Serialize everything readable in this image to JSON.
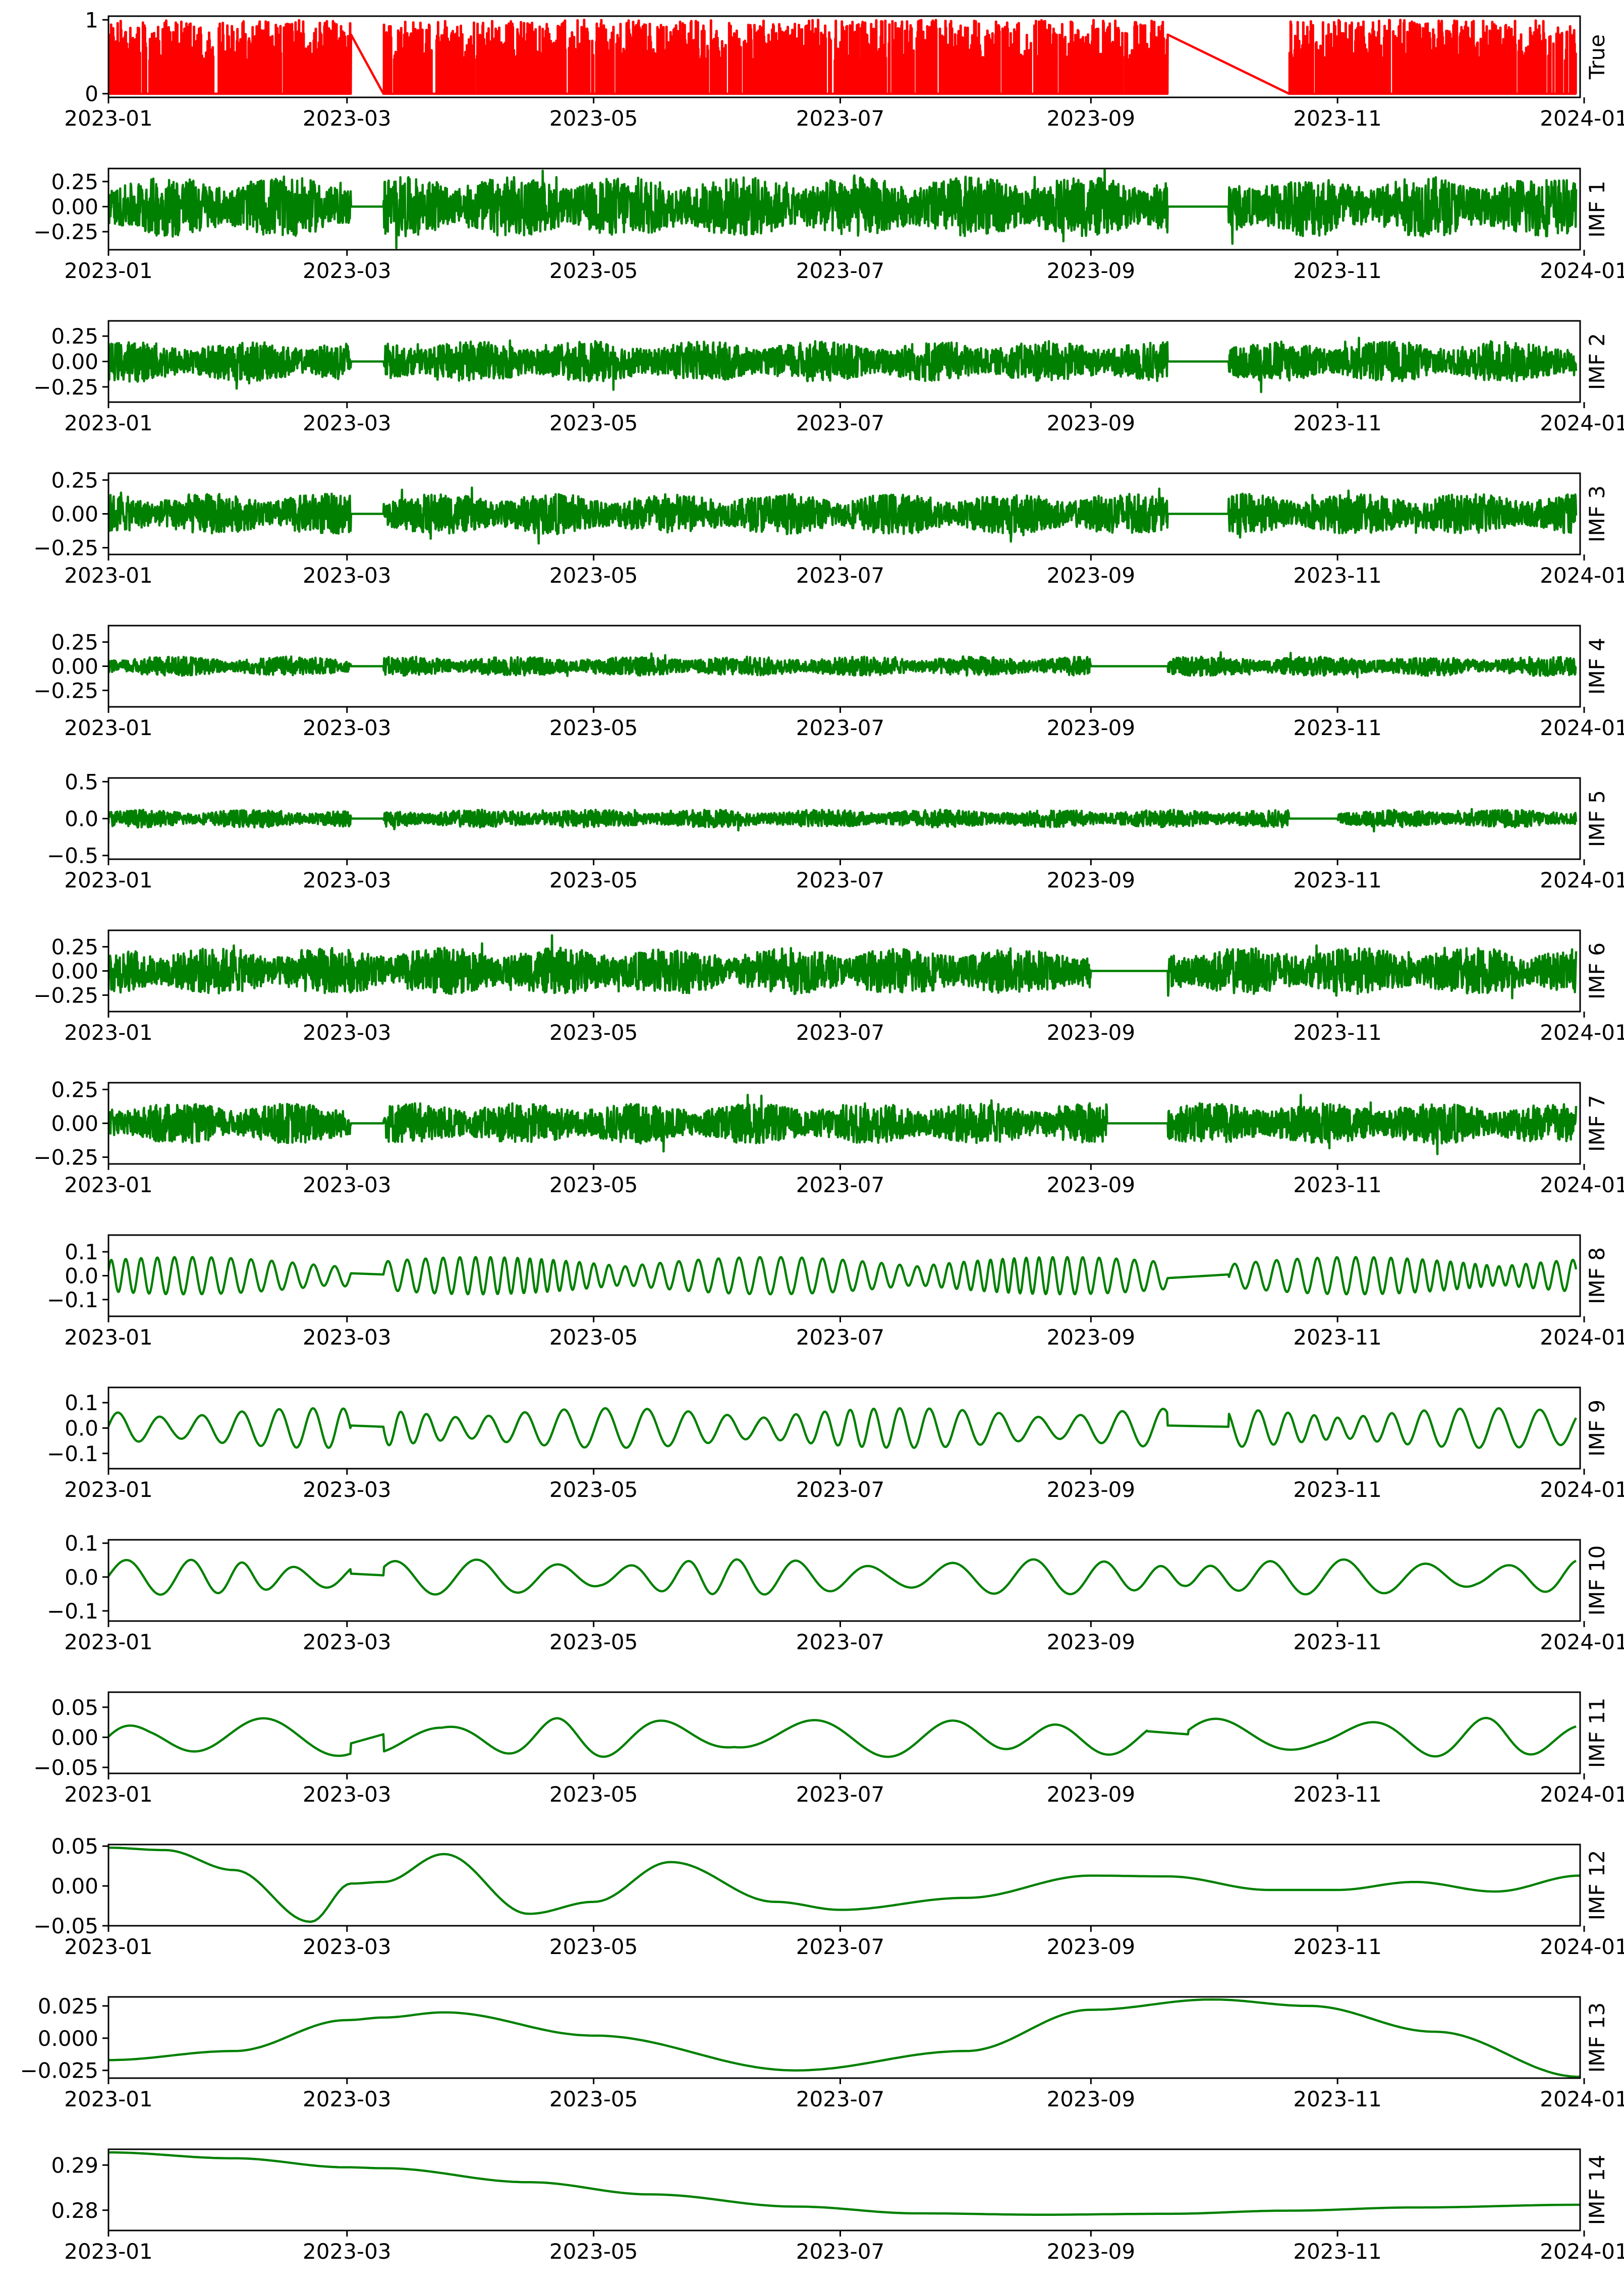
{
  "chart_data": {
    "type": "line",
    "layout": "stacked-subplots",
    "x_axis": {
      "kind": "date",
      "range": [
        "2023-01-01",
        "2023-12-31"
      ],
      "tick_labels": [
        "2023-01",
        "2023-03",
        "2023-05",
        "2023-07",
        "2023-09",
        "2023-11",
        "2024-01"
      ]
    },
    "colors": {
      "true": "#ff0000",
      "imf": "#008000"
    },
    "panels": [
      {
        "label": "True",
        "color": "#ff0000",
        "ylim": [
          -0.05,
          1.05
        ],
        "yticks": [
          {
            "v": 0,
            "t": "0"
          },
          {
            "v": 1,
            "t": "1"
          }
        ],
        "signal": {
          "style": "binary",
          "amp": 1,
          "gaps": [
            [
              "2023-03-02",
              "2023-03-10"
            ],
            [
              "2023-09-20",
              "2023-10-20"
            ]
          ]
        }
      },
      {
        "label": "IMF 1",
        "color": "#008000",
        "ylim": [
          -0.43,
          0.38
        ],
        "yticks": [
          {
            "v": 0.25,
            "t": "0.25"
          },
          {
            "v": 0,
            "t": "0.00"
          },
          {
            "v": -0.25,
            "t": "−0.25"
          }
        ],
        "signal": {
          "style": "noise",
          "amp": 0.3,
          "gaps": [
            [
              "2023-03-02",
              "2023-03-10"
            ],
            [
              "2023-09-20",
              "2023-10-05"
            ]
          ]
        }
      },
      {
        "label": "IMF 2",
        "color": "#008000",
        "ylim": [
          -0.4,
          0.4
        ],
        "yticks": [
          {
            "v": 0.25,
            "t": "0.25"
          },
          {
            "v": 0,
            "t": "0.00"
          },
          {
            "v": -0.25,
            "t": "−0.25"
          }
        ],
        "signal": {
          "style": "noise",
          "amp": 0.2,
          "gaps": [
            [
              "2023-03-02",
              "2023-03-10"
            ],
            [
              "2023-09-20",
              "2023-10-05"
            ]
          ]
        }
      },
      {
        "label": "IMF 3",
        "color": "#008000",
        "ylim": [
          -0.3,
          0.3
        ],
        "yticks": [
          {
            "v": 0.25,
            "t": "0.25"
          },
          {
            "v": 0,
            "t": "0.00"
          },
          {
            "v": -0.25,
            "t": "−0.25"
          }
        ],
        "signal": {
          "style": "noise",
          "amp": 0.15,
          "gaps": [
            [
              "2023-03-02",
              "2023-03-10"
            ],
            [
              "2023-09-20",
              "2023-10-05"
            ]
          ]
        }
      },
      {
        "label": "IMF 4",
        "color": "#008000",
        "ylim": [
          -0.42,
          0.42
        ],
        "yticks": [
          {
            "v": 0.25,
            "t": "0.25"
          },
          {
            "v": 0,
            "t": "0.00"
          },
          {
            "v": -0.25,
            "t": "−0.25"
          }
        ],
        "signal": {
          "style": "noise",
          "amp": 0.1,
          "gaps": [
            [
              "2023-03-02",
              "2023-03-10"
            ],
            [
              "2023-09-01",
              "2023-09-20"
            ]
          ]
        }
      },
      {
        "label": "IMF 5",
        "color": "#008000",
        "ylim": [
          -0.55,
          0.55
        ],
        "yticks": [
          {
            "v": 0.5,
            "t": "0.5"
          },
          {
            "v": 0,
            "t": "0.0"
          },
          {
            "v": -0.5,
            "t": "−0.5"
          }
        ],
        "signal": {
          "style": "noise",
          "amp": 0.12,
          "gaps": [
            [
              "2023-03-02",
              "2023-03-10"
            ],
            [
              "2023-10-20",
              "2023-11-01"
            ]
          ]
        }
      },
      {
        "label": "IMF 6",
        "color": "#008000",
        "ylim": [
          -0.42,
          0.42
        ],
        "yticks": [
          {
            "v": 0.25,
            "t": "0.25"
          },
          {
            "v": 0,
            "t": "0.00"
          },
          {
            "v": -0.25,
            "t": "−0.25"
          }
        ],
        "signal": {
          "style": "noise",
          "amp": 0.24,
          "gaps": [
            [
              "2023-09-01",
              "2023-09-20"
            ]
          ]
        }
      },
      {
        "label": "IMF 7",
        "color": "#008000",
        "ylim": [
          -0.3,
          0.3
        ],
        "yticks": [
          {
            "v": 0.25,
            "t": "0.25"
          },
          {
            "v": 0,
            "t": "0.00"
          },
          {
            "v": -0.25,
            "t": "−0.25"
          }
        ],
        "signal": {
          "style": "noise",
          "amp": 0.15,
          "gaps": [
            [
              "2023-03-02",
              "2023-03-10"
            ],
            [
              "2023-09-05",
              "2023-09-20"
            ]
          ]
        }
      },
      {
        "label": "IMF 8",
        "color": "#008000",
        "ylim": [
          -0.17,
          0.17
        ],
        "yticks": [
          {
            "v": 0.1,
            "t": "0.1"
          },
          {
            "v": 0,
            "t": "0.0"
          },
          {
            "v": -0.1,
            "t": "−0.1"
          }
        ],
        "signal": {
          "style": "wave",
          "amp": 0.06,
          "period": 4,
          "gaps": [
            [
              "2023-03-02",
              "2023-03-10"
            ],
            [
              "2023-09-20",
              "2023-10-05"
            ]
          ]
        }
      },
      {
        "label": "IMF 9",
        "color": "#008000",
        "ylim": [
          -0.16,
          0.16
        ],
        "yticks": [
          {
            "v": 0.1,
            "t": "0.1"
          },
          {
            "v": 0,
            "t": "0.0"
          },
          {
            "v": -0.1,
            "t": "−0.1"
          }
        ],
        "signal": {
          "style": "wave",
          "amp": 0.06,
          "period": 8,
          "gaps": [
            [
              "2023-03-02",
              "2023-03-10"
            ],
            [
              "2023-09-20",
              "2023-10-05"
            ]
          ]
        }
      },
      {
        "label": "IMF 10",
        "color": "#008000",
        "ylim": [
          -0.13,
          0.11
        ],
        "yticks": [
          {
            "v": 0.1,
            "t": "0.1"
          },
          {
            "v": 0,
            "t": "0.0"
          },
          {
            "v": -0.1,
            "t": "−0.1"
          }
        ],
        "signal": {
          "style": "wave",
          "amp": 0.04,
          "period": 16,
          "gaps": [
            [
              "2023-03-02",
              "2023-03-10"
            ]
          ]
        }
      },
      {
        "label": "IMF 11",
        "color": "#008000",
        "ylim": [
          -0.06,
          0.075
        ],
        "yticks": [
          {
            "v": 0.05,
            "t": "0.05"
          },
          {
            "v": 0,
            "t": "0.00"
          },
          {
            "v": -0.05,
            "t": "−0.05"
          }
        ],
        "signal": {
          "style": "wave",
          "amp": 0.025,
          "period": 30,
          "gaps": [
            [
              "2023-03-02",
              "2023-03-10"
            ],
            [
              "2023-09-15",
              "2023-09-25"
            ]
          ]
        }
      },
      {
        "label": "IMF 12",
        "color": "#008000",
        "ylim": [
          -0.05,
          0.052
        ],
        "yticks": [
          {
            "v": 0.05,
            "t": "0.05"
          },
          {
            "v": 0,
            "t": "0.00"
          },
          {
            "v": -0.05,
            "t": "−0.05"
          }
        ],
        "x": [
          "2023-01-01",
          "2023-01-15",
          "2023-02-01",
          "2023-02-20",
          "2023-03-02",
          "2023-03-10",
          "2023-03-25",
          "2023-04-15",
          "2023-05-01",
          "2023-05-20",
          "2023-06-15",
          "2023-07-01",
          "2023-08-01",
          "2023-09-01",
          "2023-09-20",
          "2023-10-15",
          "2023-11-01",
          "2023-11-20",
          "2023-12-10",
          "2023-12-31"
        ],
        "y": [
          0.048,
          0.045,
          0.02,
          -0.045,
          0.003,
          0.005,
          0.04,
          -0.035,
          -0.02,
          0.03,
          -0.02,
          -0.03,
          -0.015,
          0.013,
          0.012,
          -0.005,
          -0.005,
          0.005,
          -0.007,
          0.013
        ]
      },
      {
        "label": "IMF 13",
        "color": "#008000",
        "ylim": [
          -0.031,
          0.032
        ],
        "yticks": [
          {
            "v": 0.025,
            "t": "0.025"
          },
          {
            "v": 0,
            "t": "0.000"
          },
          {
            "v": -0.025,
            "t": "−0.025"
          }
        ],
        "x": [
          "2023-01-01",
          "2023-02-01",
          "2023-03-01",
          "2023-03-10",
          "2023-03-25",
          "2023-05-01",
          "2023-06-20",
          "2023-08-01",
          "2023-09-01",
          "2023-10-01",
          "2023-10-25",
          "2023-11-25",
          "2023-12-31"
        ],
        "y": [
          -0.017,
          -0.01,
          0.014,
          0.016,
          0.02,
          0.002,
          -0.025,
          -0.01,
          0.022,
          0.03,
          0.025,
          0.005,
          -0.03
        ]
      },
      {
        "label": "IMF 14",
        "color": "#008000",
        "ylim": [
          0.2755,
          0.2935
        ],
        "yticks": [
          {
            "v": 0.29,
            "t": "0.29"
          },
          {
            "v": 0.28,
            "t": "0.28"
          }
        ],
        "x": [
          "2023-01-01",
          "2023-02-01",
          "2023-03-01",
          "2023-03-10",
          "2023-04-15",
          "2023-05-15",
          "2023-06-20",
          "2023-07-20",
          "2023-08-20",
          "2023-09-20",
          "2023-10-20",
          "2023-11-20",
          "2023-12-31"
        ],
        "y": [
          0.2928,
          0.2915,
          0.2895,
          0.2893,
          0.2862,
          0.2835,
          0.2808,
          0.2793,
          0.279,
          0.2792,
          0.2799,
          0.2806,
          0.2812
        ]
      }
    ]
  }
}
